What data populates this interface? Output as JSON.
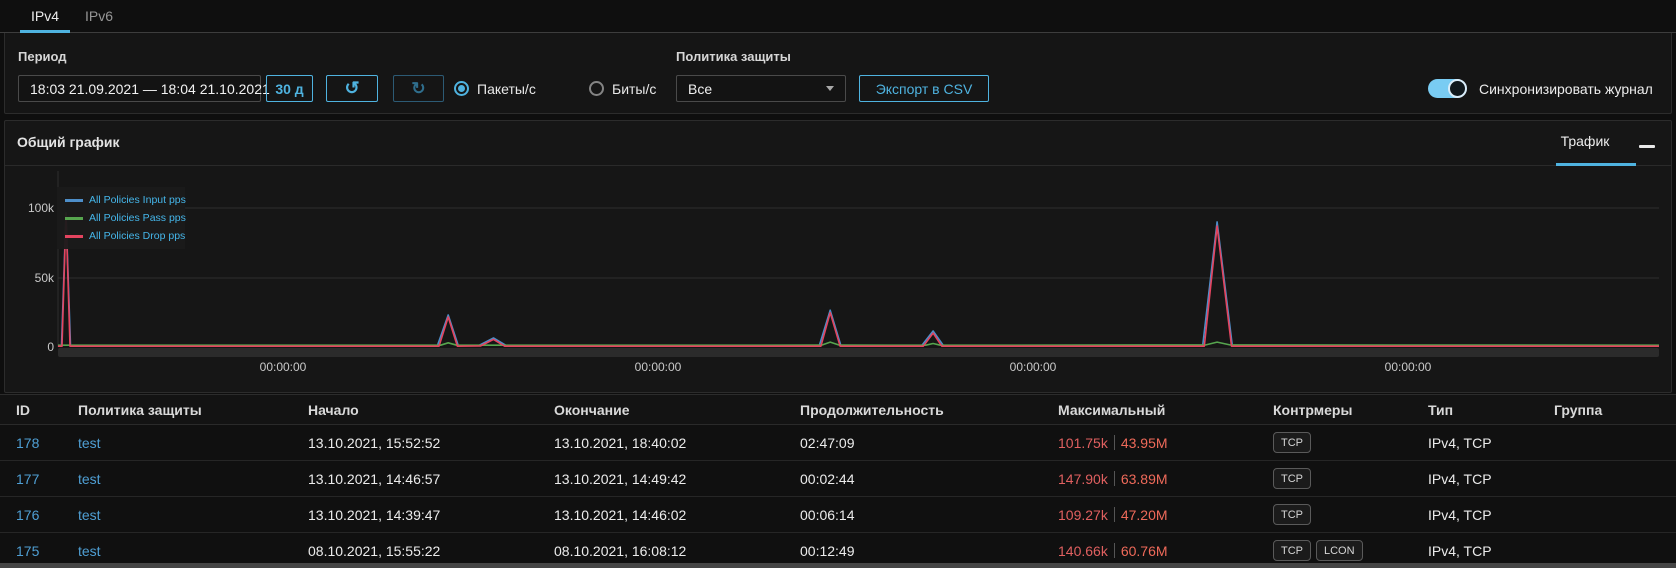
{
  "colors": {
    "accent": "#4fb3e0",
    "link": "#4f9fd4",
    "max_pps": "#e06060",
    "max_bps": "#ef6a5a"
  },
  "tabs": [
    {
      "label": "IPv4",
      "active": true
    },
    {
      "label": "IPv6",
      "active": false
    }
  ],
  "toolbar": {
    "period_label": "Период",
    "period_value": "18:03 21.09.2021 — 18:04 21.10.2021",
    "quick_range_label": "30 д",
    "undo_icon": "↺",
    "refresh_icon": "↻",
    "radios": [
      {
        "label": "Пакеты/с",
        "selected": true
      },
      {
        "label": "Биты/с",
        "selected": false
      }
    ],
    "policy_label": "Политика защиты",
    "policy_value": "Все",
    "export_label": "Экспорт в CSV",
    "sync_label": "Синхронизировать журнал",
    "sync_on": true
  },
  "chart_panel": {
    "tab_label": "Трафик"
  },
  "chart_data": {
    "type": "line",
    "title": "Общий график",
    "units": "pps",
    "value_scale": "thousands",
    "ylim": [
      0,
      105000
    ],
    "grid": true,
    "legend_position": "top-left",
    "yticks": [
      "100k",
      "50k",
      "0"
    ],
    "xticks": [
      "00:00:00",
      "00:00:00",
      "00:00:00",
      "00:00:00"
    ],
    "series": [
      {
        "name": "All Policies Input pps",
        "color": "#4d8ec9",
        "points": [
          [
            0,
            1
          ],
          [
            0.22,
            1
          ],
          [
            0.5,
            96.5
          ],
          [
            0.78,
            1
          ],
          [
            23.7,
            1
          ],
          [
            24.37,
            23
          ],
          [
            25.0,
            1
          ],
          [
            26.3,
            1.2
          ],
          [
            27.2,
            6.5
          ],
          [
            28.0,
            1
          ],
          [
            47.55,
            1
          ],
          [
            48.23,
            26.5
          ],
          [
            48.9,
            1
          ],
          [
            53.95,
            1
          ],
          [
            54.66,
            11.5
          ],
          [
            55.3,
            1
          ],
          [
            71.5,
            1
          ],
          [
            72.4,
            90
          ],
          [
            73.35,
            1
          ],
          [
            100,
            1
          ]
        ]
      },
      {
        "name": "All Policies Pass pps",
        "color": "#56a54e",
        "points": [
          [
            0,
            1.3
          ],
          [
            23.9,
            1.3
          ],
          [
            24.37,
            3
          ],
          [
            24.9,
            1.3
          ],
          [
            47.7,
            1.4
          ],
          [
            48.23,
            3.5
          ],
          [
            48.8,
            1.4
          ],
          [
            54.2,
            1.3
          ],
          [
            54.66,
            2.5
          ],
          [
            55.1,
            1.3
          ],
          [
            71.7,
            1.5
          ],
          [
            72.4,
            3.5
          ],
          [
            73.2,
            1.5
          ],
          [
            100,
            1.3
          ]
        ]
      },
      {
        "name": "All Policies Drop pps",
        "color": "#e4445f",
        "points": [
          [
            0,
            0.6
          ],
          [
            0.25,
            0.6
          ],
          [
            0.5,
            96
          ],
          [
            0.75,
            0.6
          ],
          [
            23.8,
            0.6
          ],
          [
            24.37,
            21.6
          ],
          [
            24.95,
            0.6
          ],
          [
            26.4,
            0.8
          ],
          [
            27.2,
            5.5
          ],
          [
            27.9,
            0.6
          ],
          [
            47.65,
            0.6
          ],
          [
            48.23,
            24.7
          ],
          [
            48.85,
            0.6
          ],
          [
            54.05,
            0.6
          ],
          [
            54.66,
            10
          ],
          [
            55.2,
            0.6
          ],
          [
            71.6,
            0.6
          ],
          [
            72.4,
            87
          ],
          [
            73.3,
            0.6
          ],
          [
            100,
            0.6
          ]
        ]
      }
    ]
  },
  "table": {
    "columns": [
      "ID",
      "Политика защиты",
      "Начало",
      "Окончание",
      "Продолжительность",
      "Максимальный",
      "Контрмеры",
      "Тип",
      "Группа"
    ],
    "rows": [
      {
        "id": "178",
        "policy": "test",
        "start": "13.10.2021, 15:52:52",
        "end": "13.10.2021, 18:40:02",
        "duration": "02:47:09",
        "max_pps": "101.75k",
        "max_bps": "43.95M",
        "countermeasures": [
          "TCP"
        ],
        "type": "IPv4, TCP",
        "group": ""
      },
      {
        "id": "177",
        "policy": "test",
        "start": "13.10.2021, 14:46:57",
        "end": "13.10.2021, 14:49:42",
        "duration": "00:02:44",
        "max_pps": "147.90k",
        "max_bps": "63.89M",
        "countermeasures": [
          "TCP"
        ],
        "type": "IPv4, TCP",
        "group": ""
      },
      {
        "id": "176",
        "policy": "test",
        "start": "13.10.2021, 14:39:47",
        "end": "13.10.2021, 14:46:02",
        "duration": "00:06:14",
        "max_pps": "109.27k",
        "max_bps": "47.20M",
        "countermeasures": [
          "TCP"
        ],
        "type": "IPv4, TCP",
        "group": ""
      },
      {
        "id": "175",
        "policy": "test",
        "start": "08.10.2021, 15:55:22",
        "end": "08.10.2021, 16:08:12",
        "duration": "00:12:49",
        "max_pps": "140.66k",
        "max_bps": "60.76M",
        "countermeasures": [
          "TCP",
          "LCON"
        ],
        "type": "IPv4, TCP",
        "group": ""
      }
    ]
  }
}
